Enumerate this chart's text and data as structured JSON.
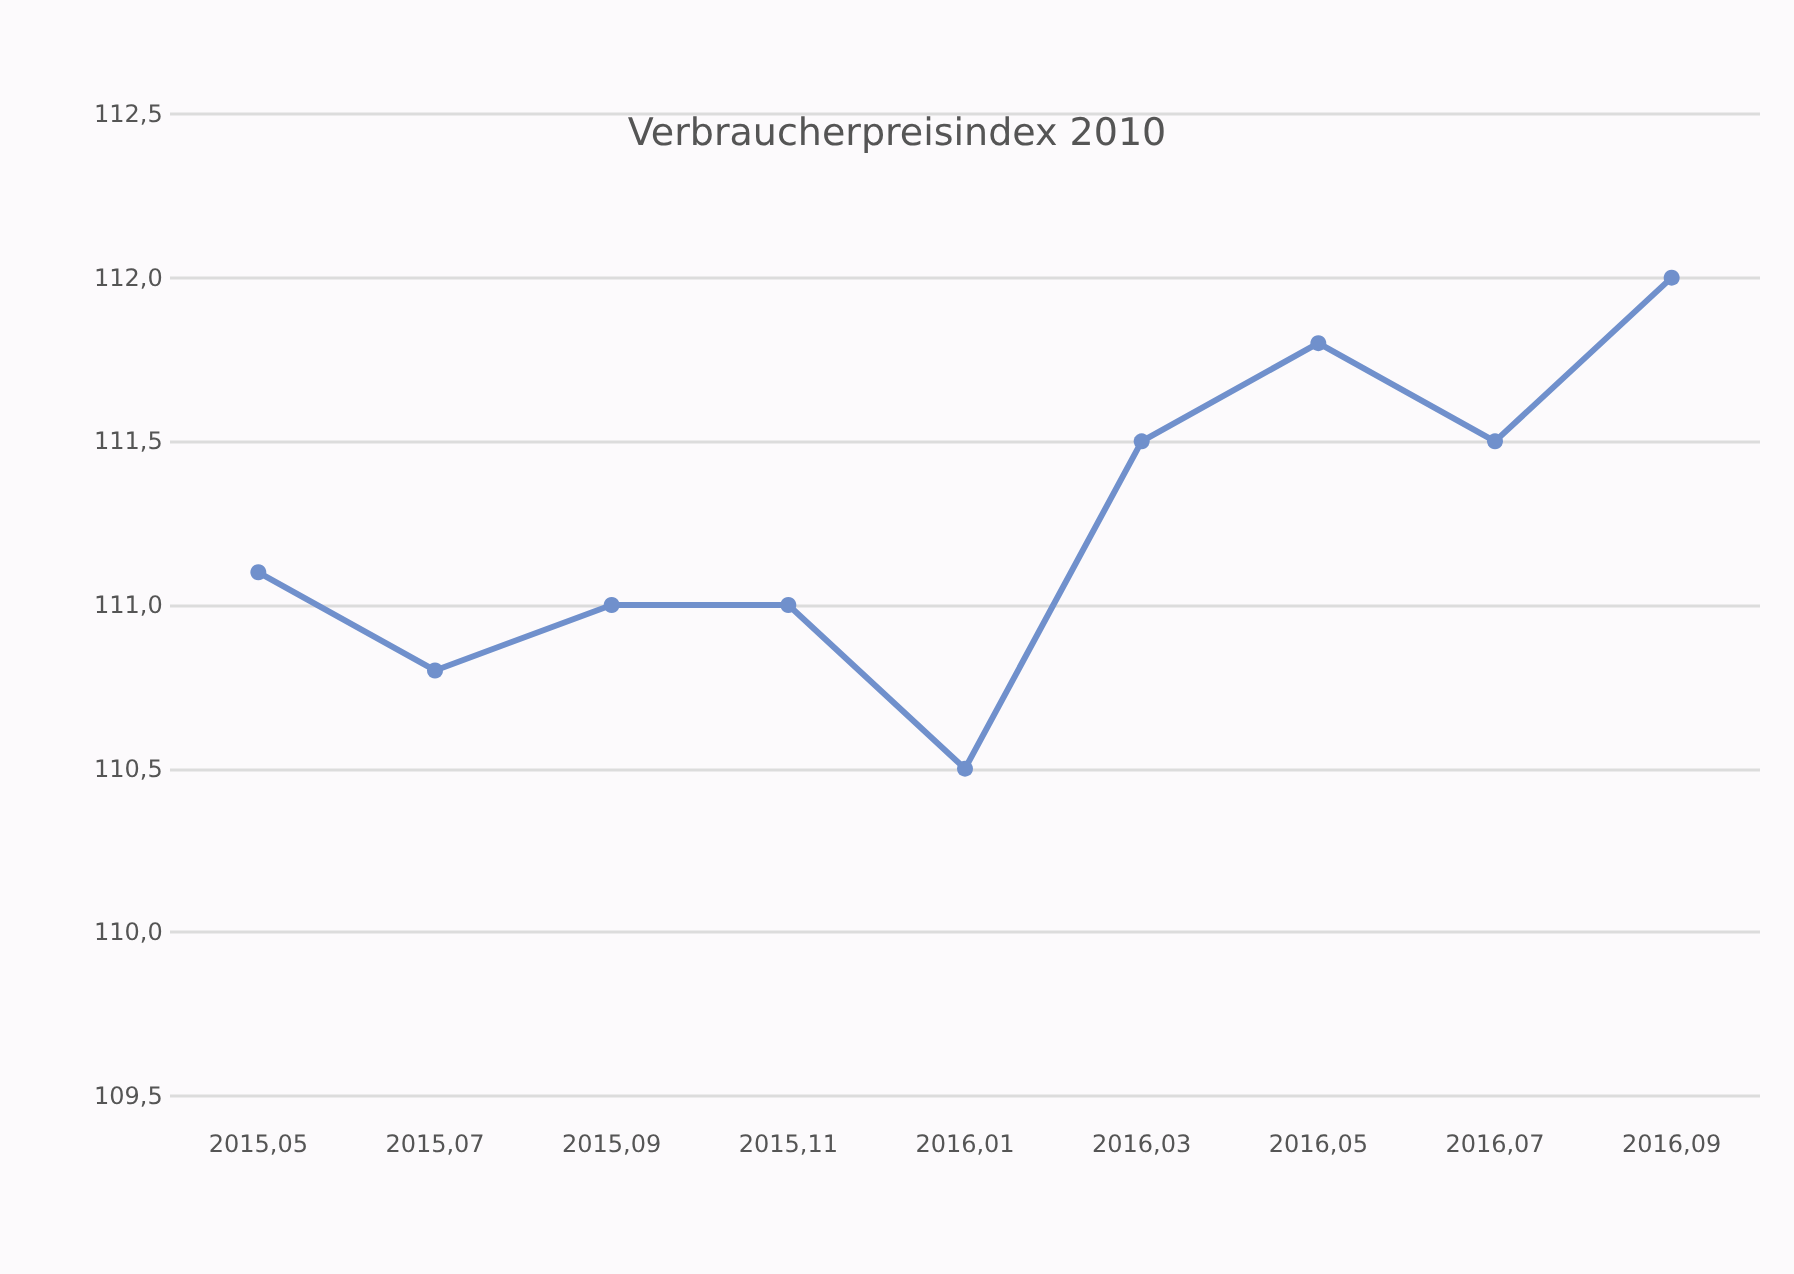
{
  "chart_data": {
    "type": "line",
    "title": "Verbraucherpreisindex 2010",
    "categories": [
      "2015,05",
      "2015,07",
      "2015,09",
      "2015,11",
      "2016,01",
      "2016,03",
      "2016,05",
      "2016,07",
      "2016,09"
    ],
    "series": [
      {
        "color": "#7090cc",
        "values": [
          111.1,
          110.8,
          111.0,
          111.0,
          110.5,
          111.5,
          111.8,
          111.5,
          112.0
        ]
      }
    ],
    "ylim": [
      109.5,
      112.5
    ],
    "yticks": [
      {
        "value": 109.5,
        "label": "109,5"
      },
      {
        "value": 110,
        "label": "110,0"
      },
      {
        "value": 110.5,
        "label": "110,5"
      },
      {
        "value": 111,
        "label": "111,0"
      },
      {
        "value": 111.5,
        "label": "111,5"
      },
      {
        "value": 112,
        "label": "112,0"
      },
      {
        "value": 112.5,
        "label": "112,5"
      }
    ],
    "grid": "y",
    "marker": "circle",
    "line_style": "solid"
  }
}
